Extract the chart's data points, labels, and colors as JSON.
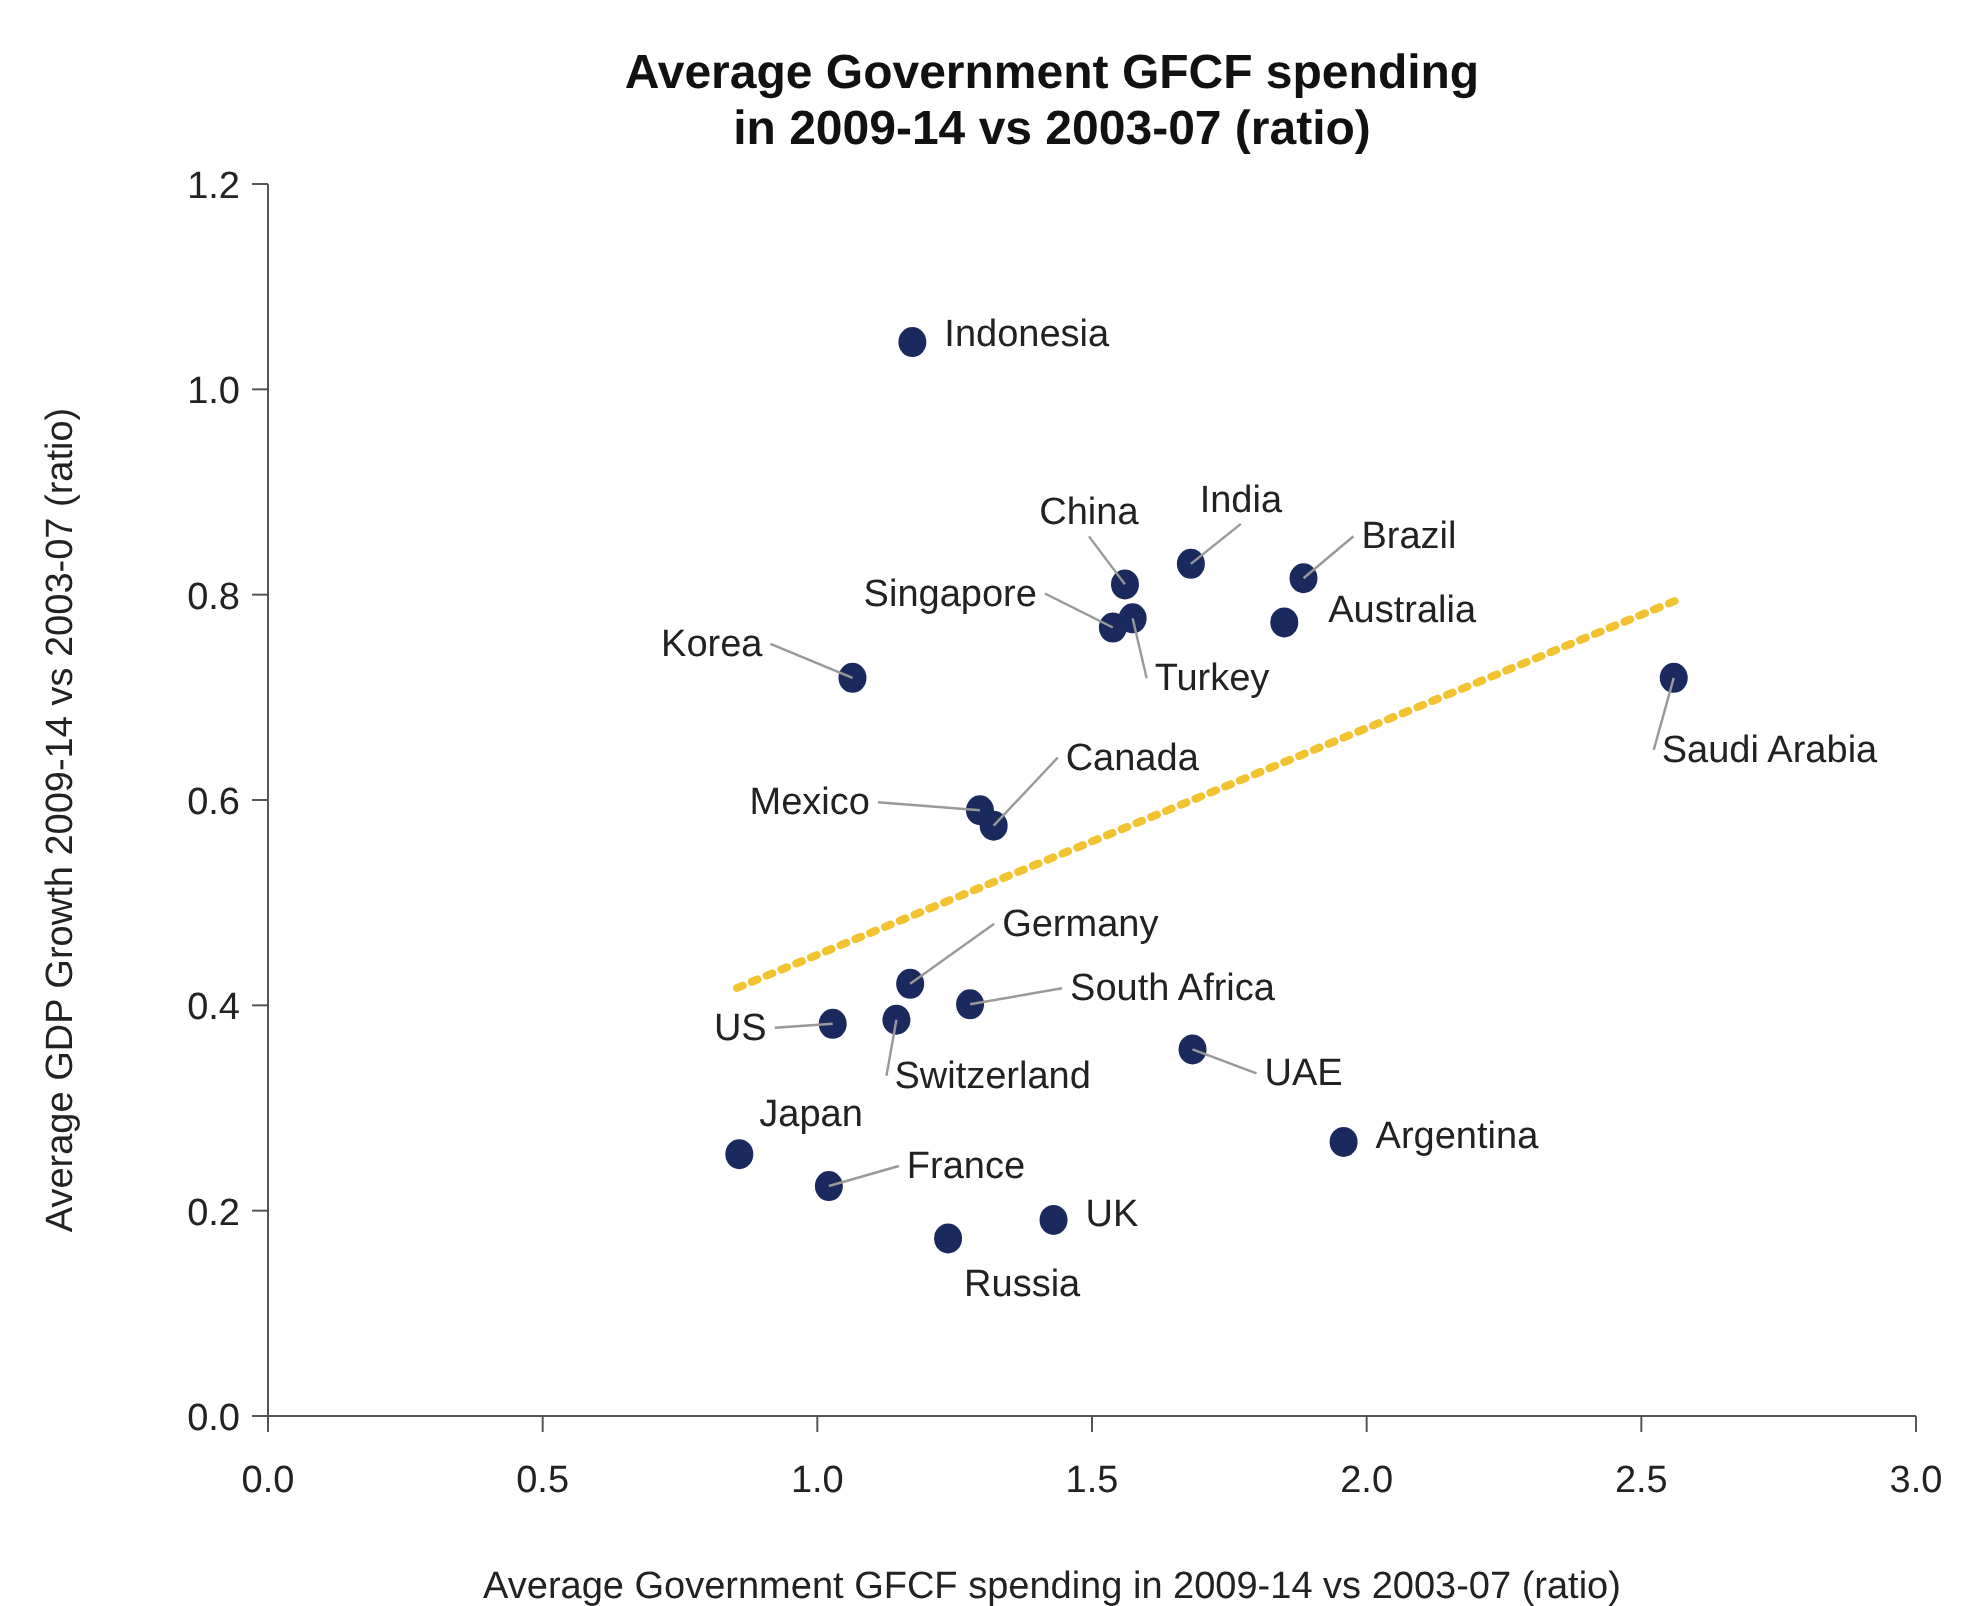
{
  "chart_data": {
    "type": "scatter",
    "title": "Average Government GFCF spending\nin 2009-14 vs 2003-07 (ratio)",
    "xlabel": "Average Government GFCF spending in 2009-14 vs 2003-07 (ratio)",
    "ylabel": "Average GDP Growth 2009-14 vs 2003-07 (ratio)",
    "series": [
      {
        "color": "#1b2a5e",
        "marker": "circle",
        "x": [
          1.173,
          1.56,
          1.68,
          1.885,
          1.85,
          1.538,
          1.574,
          1.064,
          2.559,
          1.296,
          1.321,
          1.169,
          1.278,
          1.028,
          1.144,
          1.683,
          1.958,
          0.858,
          1.021,
          1.238,
          1.43
        ],
        "values": [
          1.046,
          0.81,
          0.83,
          0.816,
          0.773,
          0.768,
          0.777,
          0.719,
          0.719,
          0.59,
          0.575,
          0.421,
          0.401,
          0.382,
          0.386,
          0.357,
          0.267,
          0.255,
          0.224,
          0.173,
          0.191
        ]
      },
      {
        "type": "line",
        "color": "#f2c230",
        "line_style": "dotted",
        "x": [
          0.854,
          2.566
        ],
        "values": [
          0.417,
          0.795
        ]
      }
    ],
    "annotations": [
      {
        "text": "Indonesia",
        "x": 1.173,
        "y": 1.046
      },
      {
        "text": "China",
        "x": 1.56,
        "y": 0.81
      },
      {
        "text": "India",
        "x": 1.68,
        "y": 0.83
      },
      {
        "text": "Brazil",
        "x": 1.885,
        "y": 0.816
      },
      {
        "text": "Australia",
        "x": 1.85,
        "y": 0.773
      },
      {
        "text": "Singapore",
        "x": 1.538,
        "y": 0.768
      },
      {
        "text": "Turkey",
        "x": 1.574,
        "y": 0.777
      },
      {
        "text": "Korea",
        "x": 1.064,
        "y": 0.719
      },
      {
        "text": "Saudi Arabia",
        "x": 2.559,
        "y": 0.719
      },
      {
        "text": "Mexico",
        "x": 1.296,
        "y": 0.59
      },
      {
        "text": "Canada",
        "x": 1.321,
        "y": 0.575
      },
      {
        "text": "Germany",
        "x": 1.169,
        "y": 0.421
      },
      {
        "text": "South Africa",
        "x": 1.278,
        "y": 0.401
      },
      {
        "text": "US",
        "x": 1.028,
        "y": 0.382
      },
      {
        "text": "Switzerland",
        "x": 1.144,
        "y": 0.386
      },
      {
        "text": "UAE",
        "x": 1.683,
        "y": 0.357
      },
      {
        "text": "Argentina",
        "x": 1.958,
        "y": 0.267
      },
      {
        "text": "Japan",
        "x": 0.858,
        "y": 0.255
      },
      {
        "text": "France",
        "x": 1.021,
        "y": 0.224
      },
      {
        "text": "Russia",
        "x": 1.238,
        "y": 0.173
      },
      {
        "text": "UK",
        "x": 1.43,
        "y": 0.191
      }
    ],
    "xlim": [
      0,
      3
    ],
    "xticks": [
      {
        "value": 0,
        "label": "0.0"
      },
      {
        "value": 0.5,
        "label": "0.5"
      },
      {
        "value": 1,
        "label": "1.0"
      },
      {
        "value": 1.5,
        "label": "1.5"
      },
      {
        "value": 2,
        "label": "2.0"
      },
      {
        "value": 2.5,
        "label": "2.5"
      },
      {
        "value": 3,
        "label": "3.0"
      }
    ],
    "ylim": [
      0,
      1.2
    ],
    "yticks": [
      {
        "value": 0,
        "label": "0.0"
      },
      {
        "value": 0.2,
        "label": "0.2"
      },
      {
        "value": 0.4,
        "label": "0.4"
      },
      {
        "value": 0.6,
        "label": "0.6"
      },
      {
        "value": 0.8,
        "label": "0.8"
      },
      {
        "value": 1,
        "label": "1.0"
      },
      {
        "value": 1.2,
        "label": "1.2"
      }
    ],
    "grid": false
  }
}
